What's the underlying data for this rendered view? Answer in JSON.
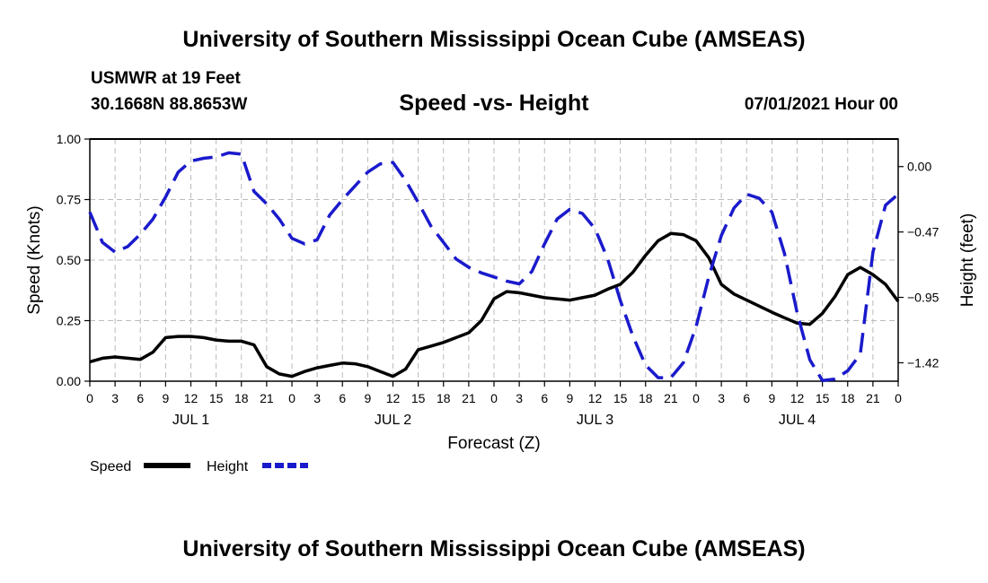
{
  "header": {
    "title": "University of Southern Mississippi Ocean Cube (AMSEAS)",
    "station": "USMWR at 19 Feet",
    "coords": "30.1668N  88.8653W",
    "plot_title": "Speed -vs- Height",
    "date": "07/01/2021 Hour 00"
  },
  "footer": {
    "title": "University of Southern Mississippi Ocean Cube (AMSEAS)"
  },
  "colors": {
    "speed": "#000000",
    "height": "#1a1acc",
    "grid": "#bbbbbb"
  },
  "chart_data": {
    "type": "line",
    "xlabel": "Forecast (Z)",
    "ylabel_left": "Speed (Knots)",
    "ylabel_right": "Height (feet)",
    "x_range": [
      0,
      96
    ],
    "y_left_range": [
      0,
      1
    ],
    "y_left_ticks": [
      "0.00",
      "0.25",
      "0.50",
      "0.75",
      "1.00"
    ],
    "y_left_tick_values": [
      0,
      0.25,
      0.5,
      0.75,
      1.0
    ],
    "y_right_range": [
      -1.5555,
      0.1998
    ],
    "y_right_ticks": [
      "0.00",
      "−0.47",
      "−0.95",
      "−1.42"
    ],
    "y_right_tick_values": [
      0,
      -0.474,
      -0.948,
      -1.422
    ],
    "x_tick_labels": [
      "0",
      "3",
      "6",
      "9",
      "12",
      "15",
      "18",
      "21",
      "0",
      "3",
      "6",
      "9",
      "12",
      "15",
      "18",
      "21",
      "0",
      "3",
      "6",
      "9",
      "12",
      "15",
      "18",
      "21",
      "0",
      "3",
      "6",
      "9",
      "12",
      "15",
      "18",
      "21",
      "0"
    ],
    "day_labels": [
      "JUL 1",
      "JUL 2",
      "JUL 3",
      "JUL 4"
    ],
    "legend": [
      "Speed",
      "Height"
    ],
    "series": [
      {
        "name": "Speed",
        "axis": "left",
        "style": "solid",
        "x": [
          0,
          1.5,
          3,
          4.5,
          6,
          7.5,
          9,
          10.5,
          12,
          13.5,
          15,
          16.5,
          18,
          19.5,
          21,
          22.5,
          24,
          25.5,
          27,
          28.5,
          30,
          31.5,
          33,
          34.5,
          36,
          37.5,
          39,
          40.5,
          42,
          43.5,
          45,
          46.5,
          48,
          49.5,
          51,
          52.5,
          54,
          55.5,
          57,
          58.5,
          60,
          61.5,
          63,
          64.5,
          66,
          67.5,
          69,
          70.5,
          72,
          73.5,
          75,
          76.5,
          78,
          79.5,
          81,
          82.5,
          84,
          85.5,
          87,
          88.5,
          90,
          91.5,
          93,
          94.5,
          96
        ],
        "values": [
          0.08,
          0.095,
          0.1,
          0.095,
          0.09,
          0.12,
          0.18,
          0.185,
          0.185,
          0.18,
          0.17,
          0.165,
          0.165,
          0.15,
          0.06,
          0.03,
          0.02,
          0.04,
          0.055,
          0.065,
          0.075,
          0.072,
          0.06,
          0.04,
          0.02,
          0.05,
          0.13,
          0.145,
          0.16,
          0.18,
          0.2,
          0.25,
          0.34,
          0.37,
          0.365,
          0.355,
          0.345,
          0.34,
          0.335,
          0.345,
          0.355,
          0.38,
          0.4,
          0.45,
          0.52,
          0.58,
          0.61,
          0.605,
          0.58,
          0.51,
          0.4,
          0.36,
          0.335,
          0.31,
          0.285,
          0.262,
          0.24,
          0.235,
          0.28,
          0.35,
          0.44,
          0.47,
          0.44,
          0.4,
          0.33
        ]
      },
      {
        "name": "Height",
        "axis": "right",
        "style": "dashed",
        "x": [
          0,
          1.5,
          3,
          4.5,
          6,
          7.5,
          9,
          10.5,
          12,
          13.5,
          15,
          16.5,
          18,
          19.5,
          21,
          22.5,
          24,
          25.5,
          27,
          28.5,
          30,
          31.5,
          33,
          34.5,
          36,
          37.5,
          39,
          40.5,
          42,
          43.5,
          45,
          46.5,
          48,
          49.5,
          51,
          52.5,
          54,
          55.5,
          57,
          58.5,
          60,
          61.5,
          63,
          64.5,
          66,
          67.5,
          69,
          70.5,
          72,
          73.5,
          75,
          76.5,
          78,
          79.5,
          81,
          82.5,
          84,
          85.5,
          87,
          88.5,
          90,
          91.5,
          93,
          94.5,
          96
        ],
        "values": [
          -0.33,
          -0.55,
          -0.62,
          -0.58,
          -0.49,
          -0.38,
          -0.22,
          -0.04,
          0.04,
          0.06,
          0.07,
          0.1,
          0.09,
          -0.18,
          -0.27,
          -0.38,
          -0.52,
          -0.56,
          -0.53,
          -0.35,
          -0.24,
          -0.14,
          -0.04,
          0.02,
          0.03,
          -0.1,
          -0.26,
          -0.43,
          -0.55,
          -0.67,
          -0.73,
          -0.77,
          -0.8,
          -0.83,
          -0.85,
          -0.76,
          -0.56,
          -0.38,
          -0.31,
          -0.34,
          -0.45,
          -0.67,
          -0.97,
          -1.23,
          -1.44,
          -1.53,
          -1.53,
          -1.42,
          -1.16,
          -0.8,
          -0.5,
          -0.3,
          -0.2,
          -0.23,
          -0.33,
          -0.63,
          -1.06,
          -1.4,
          -1.55,
          -1.54,
          -1.48,
          -1.36,
          -0.62,
          -0.28,
          -0.2
        ]
      }
    ]
  }
}
